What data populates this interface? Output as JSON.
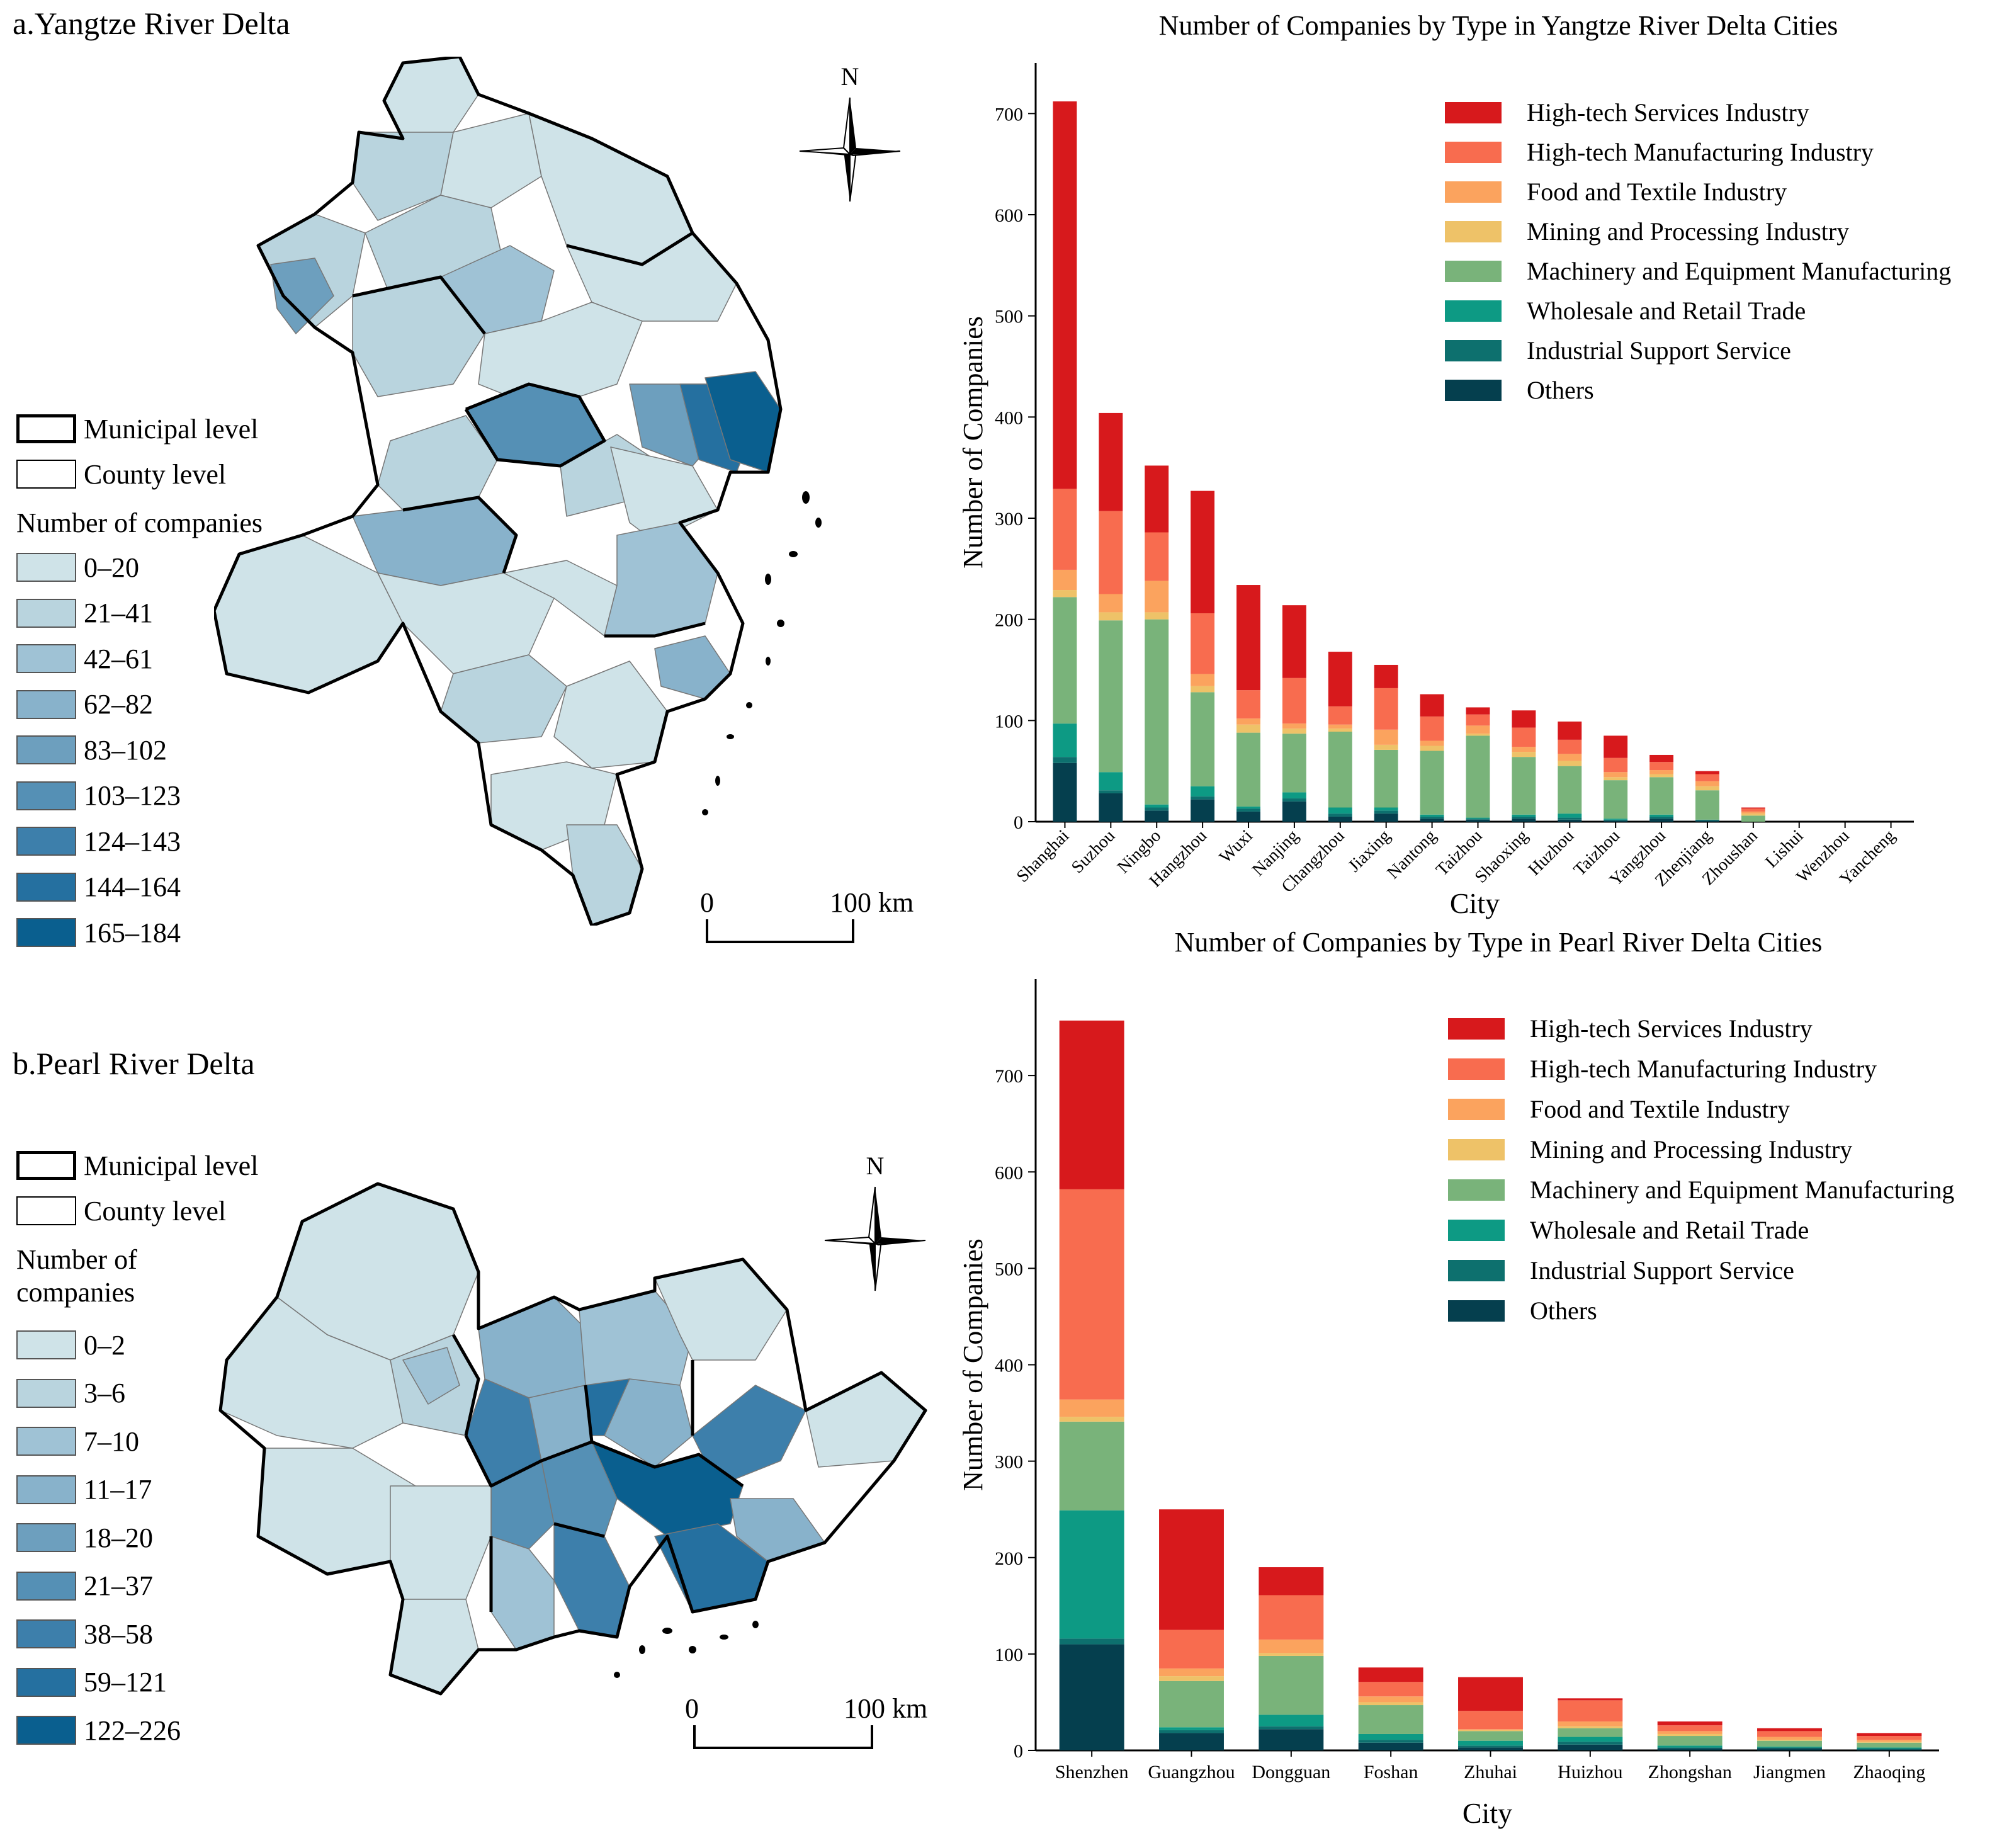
{
  "maps": [
    {
      "id": "a",
      "title": "a.Yangtze River Delta",
      "boundary_legend": [
        "Municipal level",
        "County level"
      ],
      "legend_title": [
        "Number of companies"
      ],
      "classes": [
        "0–20",
        "21–41",
        "42–61",
        "62–82",
        "83–102",
        "103–123",
        "124–143",
        "144–164",
        "165–184"
      ],
      "colors": [
        "#cfe3e8",
        "#b9d4de",
        "#9fc2d5",
        "#88b2cb",
        "#6d9fbe",
        "#5590b5",
        "#3d7fab",
        "#2570a0",
        "#0a5f8f"
      ],
      "north": "N",
      "scale": [
        "0",
        "100 km"
      ]
    },
    {
      "id": "b",
      "title": "b.Pearl River Delta",
      "boundary_legend": [
        "Municipal level",
        "County level"
      ],
      "legend_title": [
        "Number of",
        "companies"
      ],
      "classes": [
        "0–2",
        "3–6",
        "7–10",
        "11–17",
        "18–20",
        "21–37",
        "38–58",
        "59–121",
        "122–226"
      ],
      "colors": [
        "#cfe3e8",
        "#b9d4de",
        "#9fc2d5",
        "#88b2cb",
        "#6d9fbe",
        "#5590b5",
        "#3d7fab",
        "#2570a0",
        "#0a5f8f"
      ],
      "north": "N",
      "scale": [
        "0",
        "100 km"
      ]
    }
  ],
  "chart_data": [
    {
      "type": "bar",
      "stacked": true,
      "title": "Number of Companies by Type in Yangtze River Delta Cities",
      "xlabel": "City",
      "ylabel": "Number of Companies",
      "ylim": [
        0,
        750
      ],
      "yticks": [
        0,
        100,
        200,
        300,
        400,
        500,
        600,
        700
      ],
      "legend_position": "top-right",
      "categories": [
        "Shanghai",
        "Suzhou",
        "Ningbo",
        "Hangzhou",
        "Wuxi",
        "Nanjing",
        "Changzhou",
        "Jiaxing",
        "Nantong",
        "Taizhou",
        "Shaoxing",
        "Huzhou",
        "Taizhou",
        "Yangzhou",
        "Zhenjiang",
        "Zhoushan",
        "Lishui",
        "Wenzhou",
        "Yancheng"
      ],
      "series": [
        {
          "name": "Others",
          "color": "#053f4e",
          "values": [
            58,
            28,
            11,
            22,
            10,
            20,
            5,
            8,
            3,
            2,
            3,
            2,
            1,
            3,
            1,
            0,
            0,
            0,
            0
          ]
        },
        {
          "name": "Industrial Support Service",
          "color": "#0d706e",
          "values": [
            6,
            3,
            3,
            3,
            3,
            3,
            3,
            3,
            2,
            1,
            2,
            2,
            1,
            2,
            1,
            0,
            0,
            0,
            0
          ]
        },
        {
          "name": "Wholesale and Retail Trade",
          "color": "#0d9a84",
          "values": [
            33,
            18,
            3,
            10,
            2,
            6,
            6,
            3,
            2,
            1,
            2,
            4,
            1,
            2,
            0,
            0,
            0,
            0,
            0
          ]
        },
        {
          "name": "Machinery and Equipment Manufacturing",
          "color": "#79b37a",
          "values": [
            125,
            150,
            183,
            93,
            73,
            58,
            75,
            57,
            63,
            81,
            57,
            47,
            38,
            37,
            29,
            6,
            0,
            0,
            0
          ]
        },
        {
          "name": "Mining and Processing Industry",
          "color": "#eec268",
          "values": [
            7,
            8,
            7,
            6,
            8,
            5,
            3,
            5,
            5,
            2,
            5,
            5,
            3,
            3,
            4,
            2,
            0,
            0,
            0
          ]
        },
        {
          "name": "Food and Textile Industry",
          "color": "#fba35e",
          "values": [
            20,
            18,
            31,
            12,
            6,
            5,
            4,
            15,
            5,
            8,
            5,
            7,
            5,
            4,
            5,
            2,
            0,
            0,
            0
          ]
        },
        {
          "name": "High-tech Manufacturing Industry",
          "color": "#f86c4f",
          "values": [
            80,
            82,
            48,
            60,
            28,
            45,
            18,
            41,
            24,
            11,
            19,
            14,
            14,
            8,
            7,
            3,
            0,
            0,
            0
          ]
        },
        {
          "name": "High-tech Services Industry",
          "color": "#d7191c",
          "values": [
            383,
            97,
            66,
            121,
            104,
            72,
            54,
            23,
            22,
            7,
            17,
            18,
            22,
            7,
            3,
            1,
            0,
            0,
            0
          ]
        }
      ]
    },
    {
      "type": "bar",
      "stacked": true,
      "title": "Number of Companies by Type in Pearl River Delta Cities",
      "xlabel": "City",
      "ylabel": "Number of Companies",
      "ylim": [
        0,
        800
      ],
      "yticks": [
        0,
        100,
        200,
        300,
        400,
        500,
        600,
        700
      ],
      "legend_position": "top-right",
      "categories": [
        "Shenzhen",
        "Guangzhou",
        "Dongguan",
        "Foshan",
        "Zhuhai",
        "Huizhou",
        "Zhongshan",
        "Jiangmen",
        "Zhaoqing"
      ],
      "series": [
        {
          "name": "Others",
          "color": "#053f4e",
          "values": [
            110,
            18,
            22,
            8,
            3,
            6,
            2,
            2,
            1
          ]
        },
        {
          "name": "Industrial Support Service",
          "color": "#0d706e",
          "values": [
            6,
            3,
            3,
            3,
            2,
            3,
            1,
            1,
            1
          ]
        },
        {
          "name": "Wholesale and Retail Trade",
          "color": "#0d9a84",
          "values": [
            133,
            3,
            12,
            6,
            5,
            5,
            2,
            1,
            1
          ]
        },
        {
          "name": "Machinery and Equipment Manufacturing",
          "color": "#79b37a",
          "values": [
            92,
            48,
            61,
            30,
            10,
            9,
            10,
            6,
            5
          ]
        },
        {
          "name": "Mining and Processing Industry",
          "color": "#eec268",
          "values": [
            5,
            5,
            3,
            3,
            1,
            2,
            2,
            1,
            1
          ]
        },
        {
          "name": "Food and Textile Industry",
          "color": "#fba35e",
          "values": [
            18,
            8,
            14,
            6,
            1,
            5,
            3,
            3,
            2
          ]
        },
        {
          "name": "High-tech Manufacturing Industry",
          "color": "#f86c4f",
          "values": [
            218,
            40,
            46,
            15,
            19,
            22,
            6,
            6,
            4
          ]
        },
        {
          "name": "High-tech Services Industry",
          "color": "#d7191c",
          "values": [
            175,
            125,
            29,
            15,
            35,
            2,
            4,
            3,
            3
          ]
        }
      ]
    }
  ]
}
